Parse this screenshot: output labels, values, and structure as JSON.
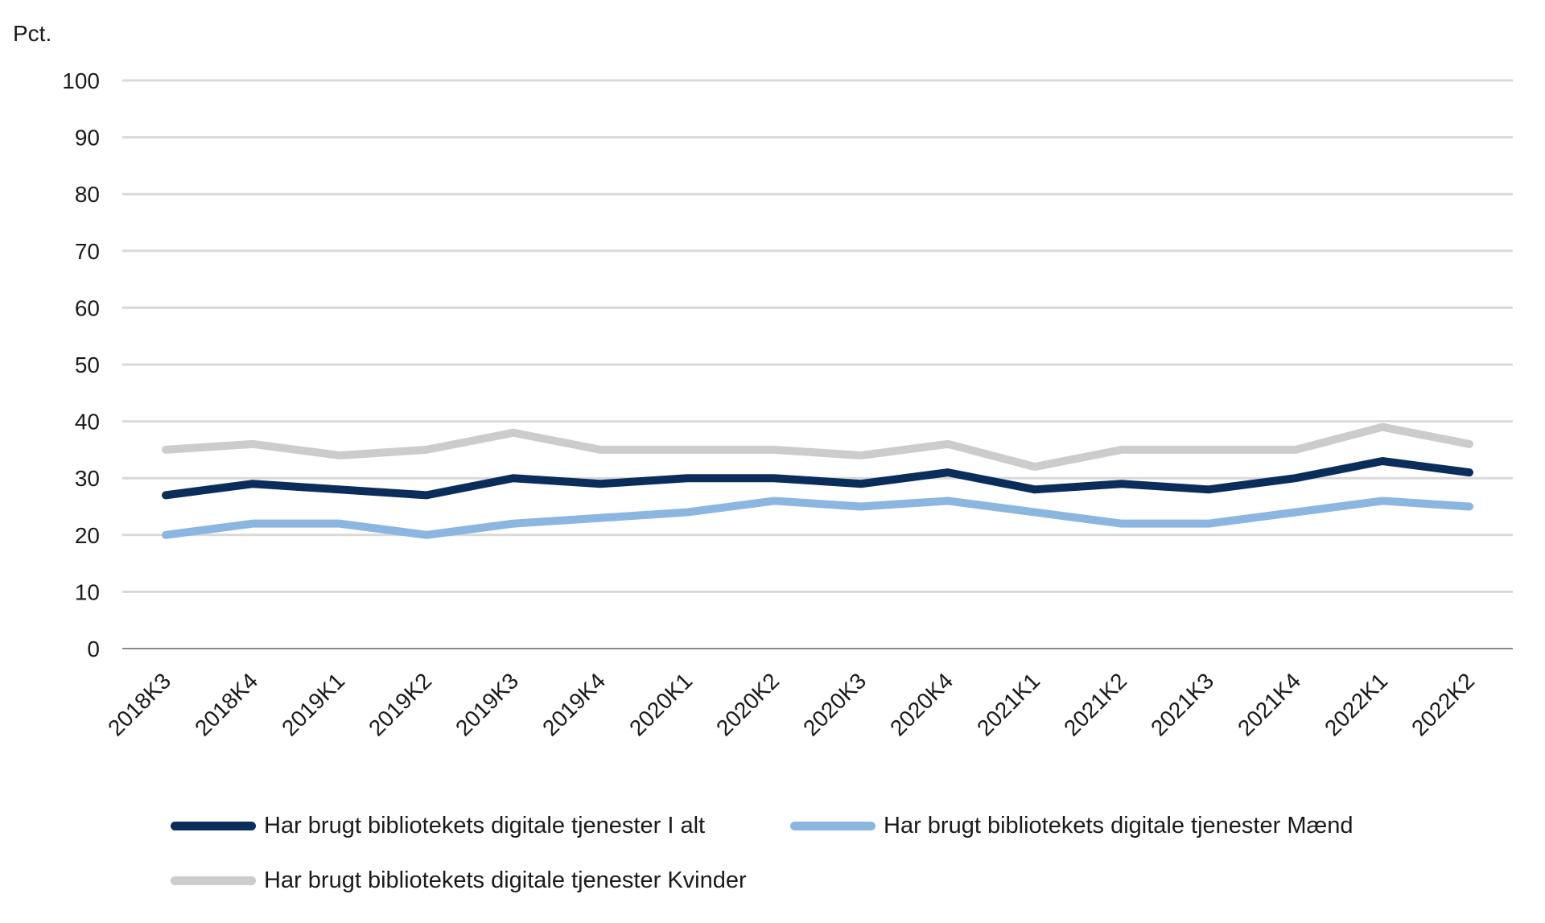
{
  "chart_data": {
    "type": "line",
    "ylabel": "Pct.",
    "ylim": [
      0,
      100
    ],
    "yticks": [
      0,
      10,
      20,
      30,
      40,
      50,
      60,
      70,
      80,
      90,
      100
    ],
    "grid": true,
    "legend_position": "bottom",
    "categories": [
      "2018K3",
      "2018K4",
      "2019K1",
      "2019K2",
      "2019K3",
      "2019K4",
      "2020K1",
      "2020K2",
      "2020K3",
      "2020K4",
      "2021K1",
      "2021K2",
      "2021K3",
      "2021K4",
      "2022K1",
      "2022K2"
    ],
    "series": [
      {
        "name": "Har brugt bibliotekets digitale tjenester I alt",
        "color": "#0b2d5b",
        "values": [
          27,
          29,
          28,
          27,
          30,
          29,
          30,
          30,
          29,
          31,
          28,
          29,
          28,
          30,
          33,
          31
        ]
      },
      {
        "name": "Har brugt bibliotekets digitale tjenester Mænd",
        "color": "#8ab6e0",
        "values": [
          20,
          22,
          22,
          20,
          22,
          23,
          24,
          26,
          25,
          26,
          24,
          22,
          22,
          24,
          26,
          25
        ]
      },
      {
        "name": "Har brugt bibliotekets digitale tjenester Kvinder",
        "color": "#cccccc",
        "values": [
          35,
          36,
          34,
          35,
          38,
          35,
          35,
          35,
          34,
          36,
          32,
          35,
          35,
          35,
          39,
          36
        ]
      }
    ]
  }
}
